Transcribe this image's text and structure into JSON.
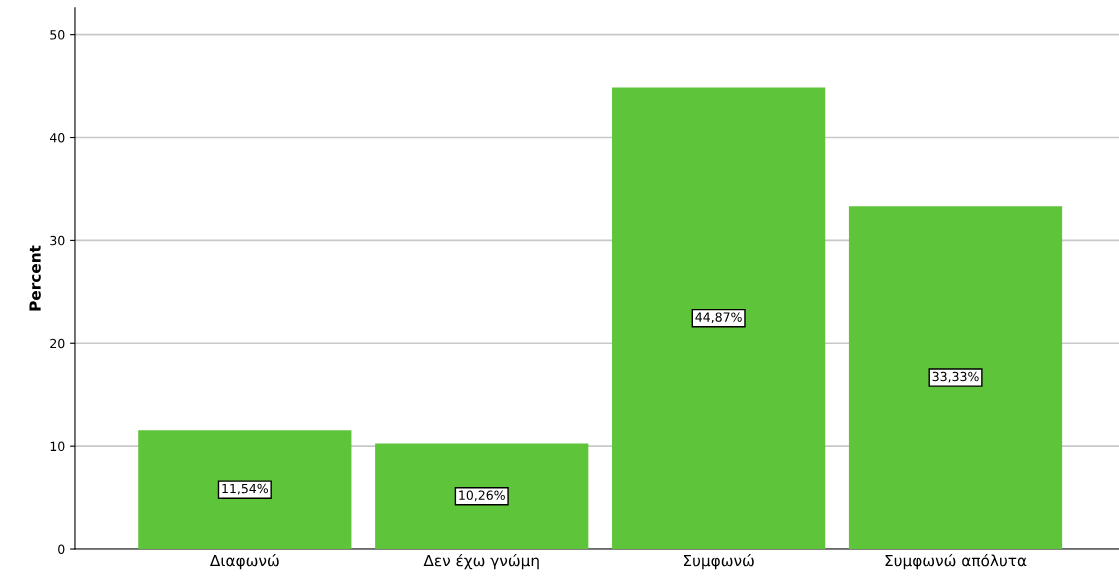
{
  "chart_data": {
    "type": "bar",
    "ylabel": "Percent",
    "categories": [
      "Διαφωνώ",
      "Δεν έχω γνώμη",
      "Συμφωνώ",
      "Συμφωνώ απόλυτα"
    ],
    "values": [
      11.54,
      10.26,
      44.87,
      33.33
    ],
    "value_labels": [
      "11,54%",
      "10,26%",
      "44,87%",
      "33,33%"
    ],
    "color": "#5ec43a",
    "ylim": [
      0,
      52.6
    ],
    "yticks": [
      0,
      10,
      20,
      30,
      40,
      50
    ],
    "grid": "y"
  }
}
